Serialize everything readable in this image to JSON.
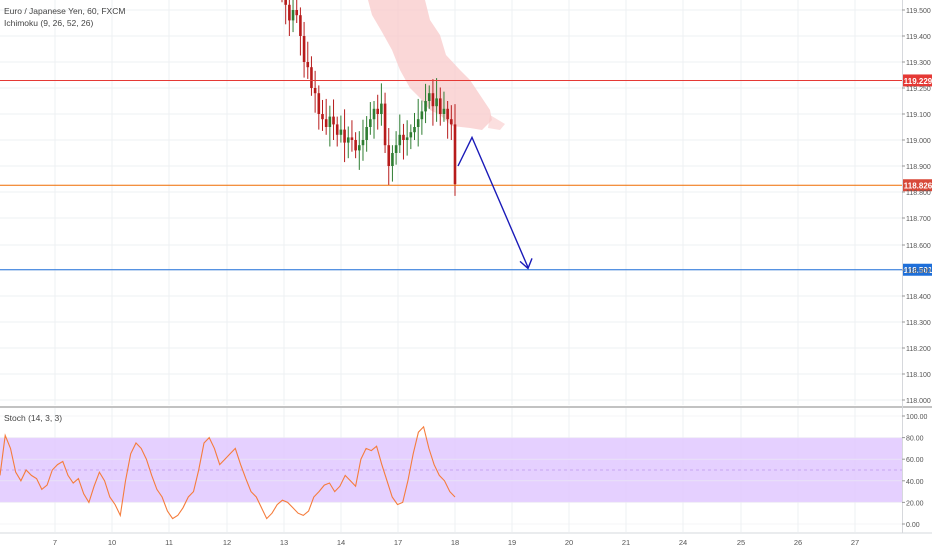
{
  "header": {
    "symbol_label": "Euro / Japanese Yen, 60, FXCM",
    "ichimoku_label": "Ichimoku (9, 26, 52, 26)"
  },
  "stoch_panel": {
    "label": "Stoch (14, 3, 3)"
  },
  "colors": {
    "up_candle": "#2e7d32",
    "down_candle": "#b71c1c",
    "resistance_line": "#e53935",
    "support_line": "#ef6c00",
    "target_line": "#1e6fd9",
    "arrow": "#1a1ab8",
    "cloud": "#f8c9c9",
    "stoch_band": "#e1c8ff",
    "stoch_line": "#f57c3c"
  },
  "chart_data": [
    {
      "type": "candlestick",
      "title": "Euro / Japanese Yen, 60, FXCM",
      "indicator": "Ichimoku (9, 26, 52, 26)",
      "x_tick_labels": [
        "7",
        "10",
        "11",
        "12",
        "13",
        "14",
        "17",
        "18",
        "19",
        "20",
        "21",
        "24",
        "25",
        "26",
        "27"
      ],
      "y_tick_labels": [
        "119.500",
        "119.400",
        "119.300",
        "119.250",
        "119.100",
        "119.000",
        "118.900",
        "118.800",
        "118.700",
        "118.600",
        "118.500",
        "118.400",
        "118.300",
        "118.200",
        "118.100",
        "118.000"
      ],
      "ylim": [
        117.99,
        119.57
      ],
      "close_series": [
        119.56,
        119.52,
        119.46,
        119.5,
        119.48,
        119.4,
        119.3,
        119.28,
        119.2,
        119.18,
        119.1,
        119.08,
        119.05,
        119.09,
        119.06,
        119.02,
        119.04,
        118.99,
        119.01,
        119.0,
        118.96,
        118.98,
        119.0,
        119.05,
        119.08,
        119.12,
        119.1,
        119.14,
        118.98,
        118.9,
        118.95,
        118.98,
        119.02,
        119.0,
        119.01,
        119.03,
        119.05,
        119.08,
        119.11,
        119.15,
        119.18,
        119.13,
        119.16,
        119.1,
        119.12,
        119.08,
        119.06,
        118.83
      ],
      "levels": [
        {
          "value": 119.229,
          "label": "119.229",
          "role": "resistance"
        },
        {
          "value": 118.826,
          "label": "118.826",
          "role": "current"
        },
        {
          "value": 118.501,
          "label": "118.501",
          "role": "target"
        }
      ],
      "projection_arrow": [
        [
          118.9,
          "18"
        ],
        [
          119.01,
          "18.3"
        ],
        [
          118.51,
          "19.3"
        ]
      ],
      "grid": true
    },
    {
      "type": "line",
      "title": "Stoch (14, 3, 3)",
      "y_tick_labels": [
        "100.00",
        "80.00",
        "60.00",
        "40.00",
        "20.00",
        "0.00"
      ],
      "ylim": [
        0,
        100
      ],
      "band": [
        20,
        80
      ],
      "values": [
        45,
        82,
        70,
        48,
        40,
        50,
        45,
        42,
        32,
        36,
        50,
        55,
        58,
        45,
        38,
        42,
        28,
        20,
        35,
        48,
        40,
        25,
        18,
        8,
        40,
        65,
        75,
        70,
        60,
        45,
        32,
        25,
        12,
        5,
        8,
        15,
        25,
        30,
        50,
        75,
        80,
        70,
        55,
        60,
        65,
        70,
        55,
        42,
        30,
        25,
        15,
        5,
        10,
        18,
        22,
        20,
        15,
        10,
        8,
        12,
        25,
        30,
        36,
        38,
        30,
        35,
        45,
        40,
        35,
        60,
        70,
        68,
        72,
        55,
        40,
        25,
        18,
        20,
        40,
        65,
        85,
        90,
        70,
        55,
        45,
        40,
        30,
        25
      ]
    }
  ]
}
